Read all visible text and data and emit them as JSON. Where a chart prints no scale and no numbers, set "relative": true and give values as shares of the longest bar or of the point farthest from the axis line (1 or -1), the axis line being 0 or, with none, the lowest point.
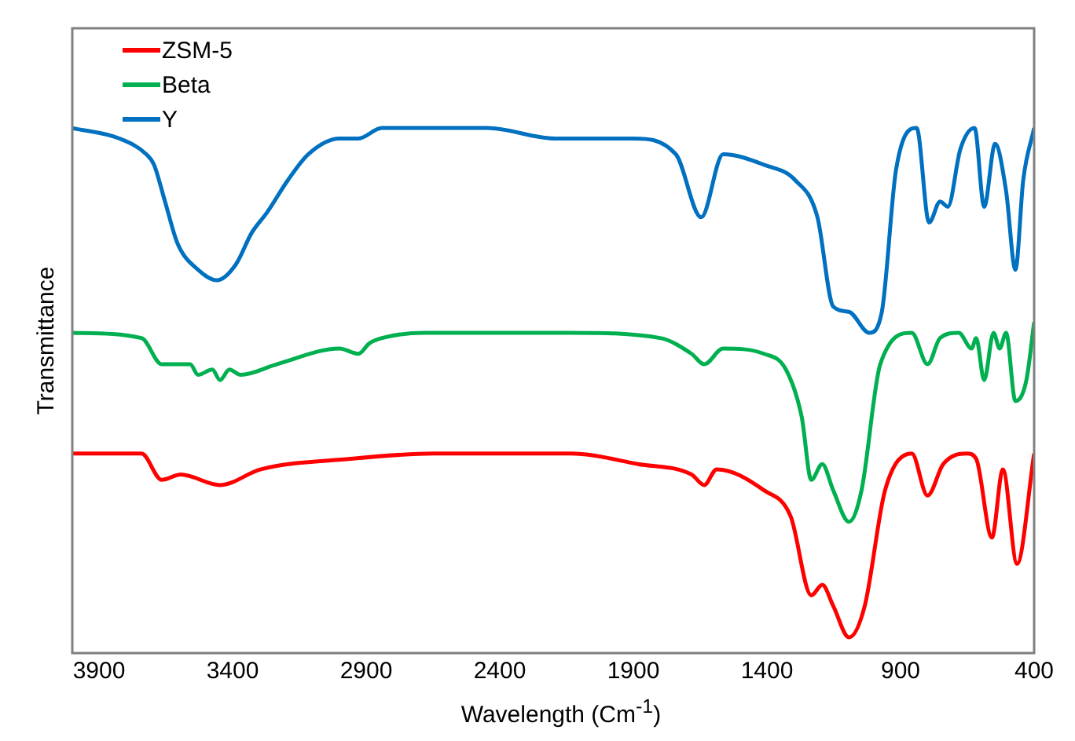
{
  "chart_data": {
    "type": "line",
    "xlabel": "Wavelength (Cm$^{-1}$)",
    "ylabel": "Transmittance",
    "xlim": [
      4000,
      400
    ],
    "xticks": [
      3900,
      3400,
      2900,
      2400,
      1900,
      1400,
      900,
      400
    ],
    "relative": true,
    "legend": "top left",
    "grid": false,
    "marker": "none",
    "line_style": "solid",
    "series": [
      {
        "name": "ZSM-5",
        "color": "#ff0000",
        "x": [
          4000,
          3741,
          3665,
          3594,
          3447,
          3294,
          2959,
          2647,
          2135,
          1882,
          1682,
          1635,
          1588,
          1411,
          1311,
          1234,
          1193,
          1152,
          1093,
          1034,
          958,
          858,
          799,
          740,
          652,
          617,
          558,
          517,
          464,
          400
        ],
        "values": [
          0.38,
          0.38,
          0.33,
          0.34,
          0.32,
          0.35,
          0.37,
          0.38,
          0.38,
          0.36,
          0.34,
          0.32,
          0.35,
          0.31,
          0.26,
          0.11,
          0.13,
          0.09,
          0.03,
          0.09,
          0.31,
          0.38,
          0.3,
          0.36,
          0.38,
          0.37,
          0.22,
          0.35,
          0.17,
          0.38
        ]
      },
      {
        "name": "Beta",
        "color": "#00b050",
        "x": [
          4000,
          3741,
          3665,
          3559,
          3529,
          3476,
          3447,
          3412,
          3370,
          3235,
          3000,
          2929,
          2888,
          2841,
          2682,
          2135,
          1800,
          1682,
          1635,
          1564,
          1411,
          1329,
          1270,
          1234,
          1193,
          1152,
          1093,
          1046,
          976,
          858,
          799,
          752,
          682,
          634,
          617,
          587,
          552,
          529,
          505,
          470,
          429,
          400
        ],
        "values": [
          0.61,
          0.6,
          0.55,
          0.55,
          0.53,
          0.54,
          0.52,
          0.54,
          0.53,
          0.55,
          0.58,
          0.57,
          0.59,
          0.6,
          0.61,
          0.61,
          0.6,
          0.57,
          0.55,
          0.58,
          0.57,
          0.54,
          0.45,
          0.33,
          0.36,
          0.31,
          0.25,
          0.31,
          0.55,
          0.61,
          0.55,
          0.6,
          0.61,
          0.58,
          0.6,
          0.52,
          0.61,
          0.58,
          0.61,
          0.48,
          0.52,
          0.63
        ]
      },
      {
        "name": "Y",
        "color": "#0070c0",
        "x": [
          4000,
          3823,
          3723,
          3694,
          3653,
          3606,
          3529,
          3459,
          3388,
          3329,
          3270,
          3194,
          3117,
          3000,
          2929,
          2841,
          2447,
          2194,
          1899,
          1741,
          1646,
          1564,
          1411,
          1293,
          1211,
          1152,
          1093,
          1017,
          970,
          917,
          840,
          793,
          752,
          723,
          676,
          623,
          587,
          546,
          505,
          470,
          441,
          400
        ],
        "values": [
          1,
          0.98,
          0.95,
          0.93,
          0.86,
          0.78,
          0.73,
          0.71,
          0.74,
          0.8,
          0.84,
          0.9,
          0.95,
          0.98,
          0.98,
          1,
          1,
          0.98,
          0.98,
          0.95,
          0.83,
          0.95,
          0.93,
          0.9,
          0.83,
          0.66,
          0.65,
          0.61,
          0.65,
          0.92,
          1,
          0.82,
          0.86,
          0.85,
          0.96,
          1,
          0.85,
          0.97,
          0.88,
          0.73,
          0.9,
          1
        ]
      }
    ]
  }
}
